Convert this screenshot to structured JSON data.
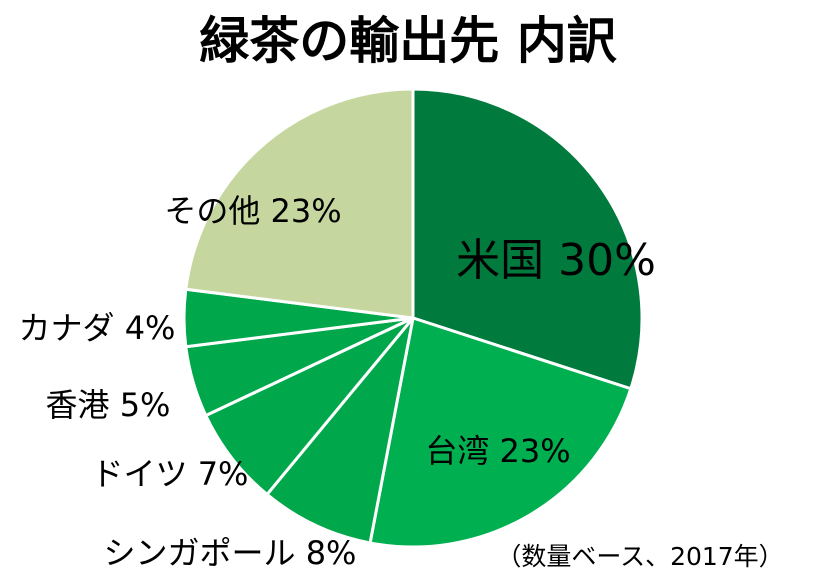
{
  "chart_data": {
    "type": "pie",
    "title": "緑茶の輸出先 内訳",
    "note": "（数量ベース、2017年）",
    "slices": [
      {
        "name": "米国",
        "value": 30,
        "label": "米国 30%",
        "color": "#007a3d"
      },
      {
        "name": "台湾",
        "value": 23,
        "label": "台湾 23%",
        "color": "#00b050"
      },
      {
        "name": "シンガポール",
        "value": 8,
        "label": "シンガポール 8%",
        "color": "#00a84b"
      },
      {
        "name": "ドイツ",
        "value": 7,
        "label": "ドイツ 7%",
        "color": "#00a84b"
      },
      {
        "name": "香港",
        "value": 5,
        "label": "香港 5%",
        "color": "#00a84b"
      },
      {
        "name": "カナダ",
        "value": 4,
        "label": "カナダ 4%",
        "color": "#00a84b"
      },
      {
        "name": "その他",
        "value": 23,
        "label": "その他 23%",
        "color": "#c5d79f"
      }
    ]
  }
}
